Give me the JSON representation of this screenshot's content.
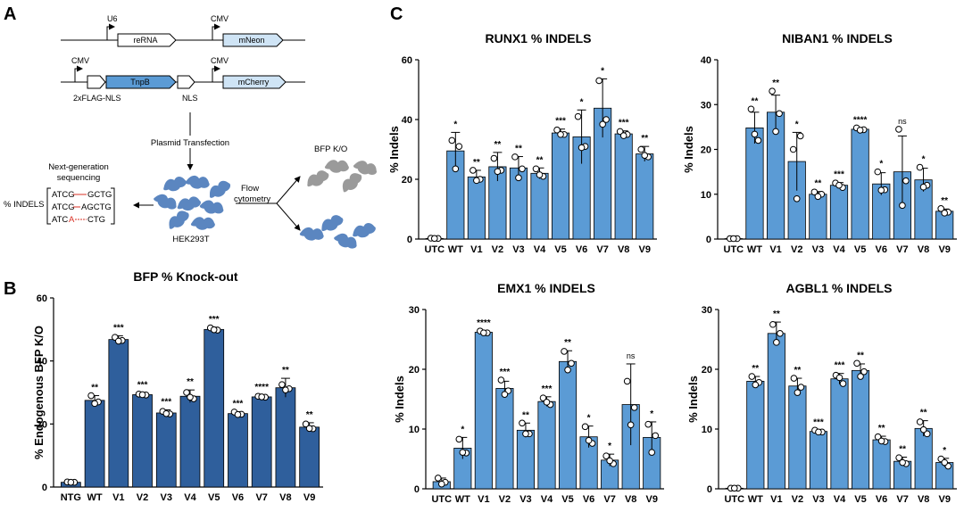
{
  "panels": {
    "A": "A",
    "B": "B",
    "C": "C"
  },
  "diagram": {
    "construct1": {
      "promoter1": "U6",
      "gene1": "reRNA",
      "promoter2": "CMV",
      "gene2": "mNeon"
    },
    "construct2": {
      "promoter1": "CMV",
      "tag": "2xFLAG-NLS",
      "gene1": "TnpB",
      "nls": "NLS",
      "promoter2": "CMV",
      "gene2": "mCherry"
    },
    "step_transfection": "Plasmid Transfection",
    "cells": "HEK293T",
    "ngs_line1": "Next-generation",
    "ngs_line2": "sequencing",
    "indels_label": "% INDELS",
    "seq1_a": "ATCG",
    "seq1_b": "GCTG",
    "seq2_a": "ATCG",
    "seq2_b": "AGCTG",
    "seq3_a": "ATC",
    "seq3_ins": "A",
    "seq3_b": "CTG",
    "flow_line1": "Flow",
    "flow_line2": "cytometry",
    "bfp_ko": "BFP K/O",
    "colors": {
      "tnpb": "#5b9bd5",
      "reporter": "#cfe4f5",
      "cell_blue": "#5b86c0",
      "cell_gray": "#9a9a9a",
      "deletion": "#d93025"
    }
  },
  "chart_data": [
    {
      "id": "bfp",
      "type": "bar",
      "title": "BFP % Knock-out",
      "ylabel": "% Endogenous BFP K/O",
      "xlabel": "",
      "ylim": [
        0,
        60
      ],
      "yticks": [
        0,
        20,
        40,
        60
      ],
      "categories": [
        "NTG",
        "WT",
        "V1",
        "V2",
        "V3",
        "V4",
        "V5",
        "V6",
        "V7",
        "V8",
        "V9"
      ],
      "values": [
        1.5,
        27.5,
        46.8,
        29.3,
        23.5,
        28.8,
        50,
        23.3,
        28.6,
        31.5,
        19
      ],
      "errors": [
        0.3,
        1.5,
        1.2,
        0.6,
        1.0,
        2.0,
        0.7,
        0.6,
        0.5,
        3.0,
        1.4
      ],
      "points": [
        [
          1.6,
          1.5,
          1.5
        ],
        [
          29,
          27,
          26.5
        ],
        [
          47.5,
          46.5,
          46.3
        ],
        [
          29.5,
          29.2,
          29.3
        ],
        [
          24,
          23.2,
          23.3
        ],
        [
          30,
          28,
          28.5
        ],
        [
          50.5,
          49.8,
          49.9
        ],
        [
          23.8,
          23.1,
          23.0
        ],
        [
          28.8,
          28.5,
          28.6
        ],
        [
          32.5,
          31.2,
          30.8
        ],
        [
          20,
          18.5,
          18.6
        ]
      ],
      "significance": [
        "",
        "**",
        "***",
        "***",
        "***",
        "**",
        "***",
        "***",
        "****",
        "**",
        "**"
      ],
      "bar_color": "#2f5f9c",
      "grid": false,
      "legend": "none"
    },
    {
      "id": "runx1",
      "type": "bar",
      "title": "RUNX1 % INDELS",
      "ylabel": "% Indels",
      "xlabel": "",
      "ylim": [
        0,
        60
      ],
      "yticks": [
        0,
        20,
        40,
        60
      ],
      "categories": [
        "UTC",
        "WT",
        "V1",
        "V2",
        "V3",
        "V4",
        "V5",
        "V6",
        "V7",
        "V8",
        "V9"
      ],
      "values": [
        0.2,
        29.5,
        20.8,
        24.2,
        23.8,
        22,
        35.5,
        34.2,
        43.8,
        35.2,
        28.5
      ],
      "errors": [
        0.2,
        6.2,
        2.2,
        4.8,
        3.8,
        1.8,
        1.3,
        9.0,
        9.8,
        1.0,
        2.5
      ],
      "points": [
        [
          0.3,
          0.2,
          0.2
        ],
        [
          33,
          31,
          23.5
        ],
        [
          23,
          20,
          19.6
        ],
        [
          27,
          23,
          22.6
        ],
        [
          27.5,
          23.5,
          20.5
        ],
        [
          23.5,
          21,
          21.5
        ],
        [
          36.5,
          35,
          35
        ],
        [
          41,
          31,
          30.6
        ],
        [
          53,
          40,
          38.4
        ],
        [
          36,
          35,
          34.6
        ],
        [
          30,
          27.5,
          28
        ]
      ],
      "significance": [
        "",
        "*",
        "**",
        "**",
        "**",
        "**",
        "***",
        "*",
        "*",
        "***",
        "**"
      ],
      "bar_color": "#5b9bd5",
      "grid": false,
      "legend": "none"
    },
    {
      "id": "niban1",
      "type": "bar",
      "title": "NIBAN1 % INDELS",
      "ylabel": "% Indels",
      "xlabel": "",
      "ylim": [
        0,
        40
      ],
      "yticks": [
        0,
        10,
        20,
        30,
        40
      ],
      "categories": [
        "UTC",
        "WT",
        "V1",
        "V2",
        "V3",
        "V4",
        "V5",
        "V6",
        "V7",
        "V8",
        "V9"
      ],
      "values": [
        0.1,
        24.8,
        28.3,
        17.3,
        10,
        12,
        24.5,
        12.3,
        15,
        13.2,
        6.2
      ],
      "errors": [
        0.1,
        3.5,
        3.8,
        6.5,
        0.6,
        0.6,
        0.2,
        2.5,
        8.0,
        2.6,
        0.5
      ],
      "points": [
        [
          0.1,
          0.1,
          0.1
        ],
        [
          29,
          22,
          23.4
        ],
        [
          33,
          28,
          24
        ],
        [
          20,
          23,
          9
        ],
        [
          10.5,
          10,
          9.5
        ],
        [
          12.5,
          11.5,
          12
        ],
        [
          24.8,
          24.4,
          24.3
        ],
        [
          15,
          11,
          10.9
        ],
        [
          24.5,
          13,
          7.5
        ],
        [
          16,
          12,
          11.6
        ],
        [
          6.8,
          6,
          5.8
        ]
      ],
      "significance": [
        "",
        "**",
        "**",
        "*",
        "**",
        "***",
        "****",
        "*",
        "ns",
        "*",
        "**"
      ],
      "bar_color": "#5b9bd5",
      "grid": false,
      "legend": "none"
    },
    {
      "id": "emx1",
      "type": "bar",
      "title": "EMX1 % INDELS",
      "ylabel": "% Indels",
      "xlabel": "",
      "ylim": [
        0,
        30
      ],
      "yticks": [
        0,
        10,
        20,
        30
      ],
      "categories": [
        "UTC",
        "WT",
        "V1",
        "V2",
        "V3",
        "V4",
        "V5",
        "V6",
        "V7",
        "V8",
        "V9"
      ],
      "values": [
        1.2,
        6.8,
        26.2,
        16.8,
        9.8,
        14.6,
        21.3,
        8.7,
        4.8,
        14.1,
        8.6
      ],
      "errors": [
        0.6,
        1.8,
        0.2,
        1.2,
        1.2,
        0.8,
        1.8,
        1.8,
        1.0,
        6.8,
        2.6
      ],
      "points": [
        [
          1.8,
          1.1,
          0.8
        ],
        [
          8.3,
          6.0,
          6.1
        ],
        [
          26.4,
          26.1,
          26.1
        ],
        [
          18.2,
          16.4,
          15.8
        ],
        [
          11,
          9.2,
          9.2
        ],
        [
          15.2,
          14.1,
          14.5
        ],
        [
          23,
          21,
          19.9
        ],
        [
          10.4,
          7.6,
          8.1
        ],
        [
          5.5,
          4.2,
          4.7
        ],
        [
          18,
          13.6,
          10.7
        ],
        [
          10.8,
          8.9,
          6.1
        ]
      ],
      "significance": [
        "",
        "*",
        "****",
        "***",
        "**",
        "***",
        "**",
        "*",
        "*",
        "ns",
        "*"
      ],
      "bar_color": "#5b9bd5",
      "grid": false,
      "legend": "none"
    },
    {
      "id": "agbl1",
      "type": "bar",
      "title": "AGBL1  % INDELS",
      "ylabel": "% Indels",
      "xlabel": "",
      "ylim": [
        0,
        30
      ],
      "yticks": [
        0,
        10,
        20,
        30
      ],
      "categories": [
        "UTC",
        "WT",
        "V1",
        "V2",
        "V3",
        "V4",
        "V5",
        "V6",
        "V7",
        "V8",
        "V9"
      ],
      "values": [
        0.1,
        18,
        26,
        17.2,
        9.6,
        18.4,
        19.8,
        8.2,
        4.6,
        10.1,
        4.4
      ],
      "errors": [
        0.1,
        0.8,
        1.9,
        1.3,
        0.2,
        0.9,
        1.1,
        0.6,
        0.7,
        1.3,
        0.7
      ],
      "points": [
        [
          0.1,
          0.1,
          0.1
        ],
        [
          18.8,
          17.8,
          17.4
        ],
        [
          27.5,
          26,
          24.5
        ],
        [
          18.5,
          17,
          16.1
        ],
        [
          9.8,
          9.5,
          9.5
        ],
        [
          19,
          17.6,
          18.6
        ],
        [
          21,
          19.6,
          18.8
        ],
        [
          8.7,
          7.9,
          8.0
        ],
        [
          5.2,
          4.2,
          4.4
        ],
        [
          11.2,
          9.2,
          9.9
        ],
        [
          5.0,
          3.8,
          4.4
        ]
      ],
      "significance": [
        "",
        "**",
        "**",
        "**",
        "***",
        "***",
        "**",
        "**",
        "**",
        "**",
        "*"
      ],
      "bar_color": "#5b9bd5",
      "grid": false,
      "legend": "none"
    }
  ]
}
